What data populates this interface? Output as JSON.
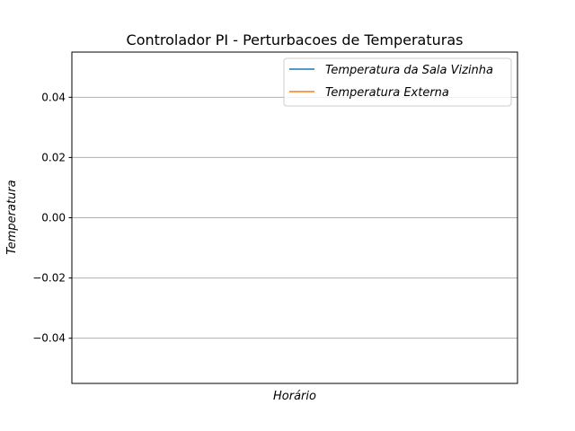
{
  "chart_data": {
    "type": "line",
    "title": "Controlador PI - Perturbacoes de Temperaturas",
    "xlabel": "Horário",
    "ylabel": "Temperatura",
    "ylim": [
      -0.055,
      0.055
    ],
    "yticks": [
      0.04,
      0.02,
      0.0,
      -0.02,
      -0.04
    ],
    "ytick_labels": [
      "0.04",
      "0.02",
      "0.00",
      "−0.02",
      "−0.04"
    ],
    "grid": "horizontal",
    "legend_position": "top-right",
    "series": [
      {
        "name": "Temperatura da Sala Vizinha",
        "color": "#1f77b4",
        "x": [],
        "values": []
      },
      {
        "name": "Temperatura Externa",
        "color": "#ff7f0e",
        "x": [],
        "values": []
      }
    ]
  }
}
